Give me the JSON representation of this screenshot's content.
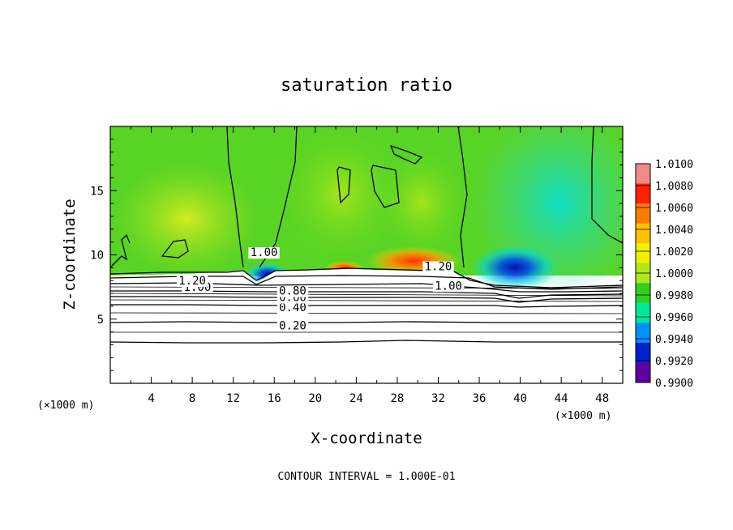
{
  "chart_data": {
    "type": "heatmap",
    "title": "saturation ratio",
    "xlabel": "X-coordinate",
    "ylabel": "Z-coordinate",
    "x_unit": "(×1000 m)",
    "x_unit_right": "(×1000 m)",
    "xlim": [
      0,
      50
    ],
    "ylim": [
      0,
      20
    ],
    "x_ticks": [
      4,
      8,
      12,
      16,
      20,
      24,
      28,
      32,
      36,
      40,
      44,
      48
    ],
    "y_ticks": [
      5,
      10,
      15
    ],
    "colorbar": {
      "min": 0.99,
      "max": 1.01,
      "levels": [
        "1.0100",
        "1.0080",
        "1.0060",
        "1.0040",
        "1.0020",
        "1.0000",
        "0.9980",
        "0.9960",
        "0.9940",
        "0.9920",
        "0.9900"
      ],
      "colors": [
        "#f08a8a",
        "#ff2000",
        "#ff7a00",
        "#ffc000",
        "#f0f000",
        "#b0e820",
        "#30d020",
        "#00e8a0",
        "#0090ff",
        "#0020c8",
        "#6000a0"
      ]
    },
    "contour_lines": [
      {
        "label": "0.20",
        "z": 4.7
      },
      {
        "label": "0.40",
        "z": 5.9
      },
      {
        "label": "0.60",
        "z": 6.5
      },
      {
        "label": "0.80",
        "z": 6.9
      },
      {
        "label": "1.00",
        "z": 7.6
      },
      {
        "label": "1.20",
        "z": 7.9
      }
    ],
    "contour_labels": [
      {
        "text": "0.20",
        "x": 17.8,
        "z": 4.2
      },
      {
        "text": "0.40",
        "x": 17.8,
        "z": 5.6
      },
      {
        "text": "0.60",
        "x": 17.8,
        "z": 6.4
      },
      {
        "text": "0.80",
        "x": 17.8,
        "z": 6.9
      },
      {
        "text": "1.00",
        "x": 8.5,
        "z": 7.2
      },
      {
        "text": "1.20",
        "x": 8.0,
        "z": 7.7
      },
      {
        "text": "1.00",
        "x": 15.0,
        "z": 9.9
      },
      {
        "text": "1.20",
        "x": 32.0,
        "z": 8.8
      },
      {
        "text": "1.00",
        "x": 33.0,
        "z": 7.3
      }
    ],
    "contour_interval_label": "CONTOUR INTERVAL = 1.000E-01"
  }
}
